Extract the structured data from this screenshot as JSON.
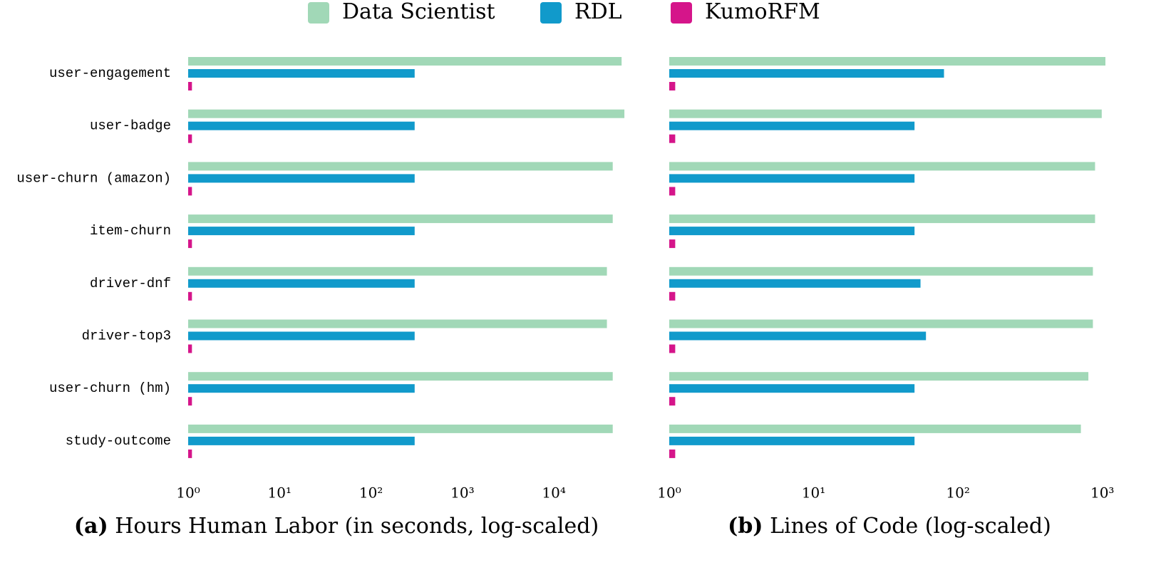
{
  "chart_data": [
    {
      "type": "bar",
      "orientation": "horizontal",
      "log_x": true,
      "subplot_label": "(a)",
      "xlabel": "Hours Human Labor (in seconds, log-scaled)",
      "categories": [
        "user-engagement",
        "user-badge",
        "user-churn (amazon)",
        "item-churn",
        "driver-dnf",
        "driver-top3",
        "user-churn (hm)",
        "study-outcome"
      ],
      "series": [
        {
          "name": "Data Scientist",
          "color": "#a1d8b7",
          "values": [
            55000,
            59000,
            44000,
            44000,
            38000,
            38000,
            44000,
            44000
          ]
        },
        {
          "name": "RDL",
          "color": "#119acb",
          "values": [
            300,
            300,
            300,
            300,
            300,
            300,
            300,
            300
          ]
        },
        {
          "name": "KumoRFM",
          "color": "#d5158a",
          "values": [
            1.1,
            1.1,
            1.1,
            1.1,
            1.1,
            1.1,
            1.1,
            1.1
          ]
        }
      ],
      "xlim": [
        1,
        60000
      ],
      "xticks": [
        {
          "value": 1,
          "label": "10⁰"
        },
        {
          "value": 10,
          "label": "10¹"
        },
        {
          "value": 100,
          "label": "10²"
        },
        {
          "value": 1000,
          "label": "10³"
        },
        {
          "value": 10000,
          "label": "10⁴"
        }
      ]
    },
    {
      "type": "bar",
      "orientation": "horizontal",
      "log_x": true,
      "subplot_label": "(b)",
      "xlabel": "Lines of Code (log-scaled)",
      "series": [
        {
          "name": "Data Scientist",
          "color": "#a1d8b7",
          "values": [
            1050,
            990,
            890,
            890,
            860,
            860,
            800,
            710
          ]
        },
        {
          "name": "RDL",
          "color": "#119acb",
          "values": [
            80,
            50,
            50,
            50,
            55,
            60,
            50,
            50
          ]
        },
        {
          "name": "KumoRFM",
          "color": "#d5158a",
          "values": [
            1.1,
            1.1,
            1.1,
            1.1,
            1.1,
            1.1,
            1.1,
            1.1
          ]
        }
      ],
      "xlim": [
        1,
        1050
      ],
      "xticks": [
        {
          "value": 1,
          "label": "10⁰"
        },
        {
          "value": 10,
          "label": "10¹"
        },
        {
          "value": 100,
          "label": "10²"
        },
        {
          "value": 1000,
          "label": "10³"
        }
      ]
    }
  ]
}
